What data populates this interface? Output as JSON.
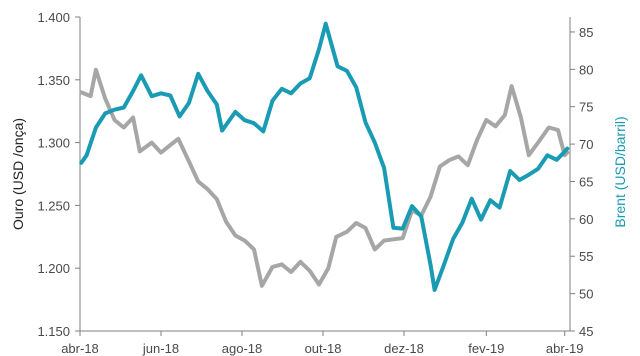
{
  "chart_data": {
    "type": "line",
    "x_tick_labels": [
      "abr-18",
      "jun-18",
      "ago-18",
      "out-18",
      "dez-18",
      "fev-19",
      "abr-19"
    ],
    "y_left": {
      "label": "Ouro (USD /onça)",
      "range": [
        1150,
        1400
      ],
      "ticks": [
        1150,
        1200,
        1250,
        1300,
        1350,
        1400
      ],
      "tick_labels": [
        "1.150",
        "1.200",
        "1.250",
        "1.300",
        "1.350",
        "1.400"
      ]
    },
    "y_right": {
      "label": "Brent (USD/barril)",
      "range": [
        45,
        87
      ],
      "ticks": [
        45,
        50,
        55,
        60,
        65,
        70,
        75,
        80,
        85
      ],
      "tick_labels": [
        "45",
        "50",
        "55",
        "60",
        "65",
        "70",
        "75",
        "80",
        "85"
      ]
    },
    "series": [
      {
        "axis": "left",
        "color": "#a6a6a6",
        "points": [
          [
            "2018-04-02",
            1340
          ],
          [
            "2018-04-09",
            1337
          ],
          [
            "2018-04-13",
            1358
          ],
          [
            "2018-04-20",
            1335
          ],
          [
            "2018-04-27",
            1318
          ],
          [
            "2018-05-04",
            1312
          ],
          [
            "2018-05-11",
            1320
          ],
          [
            "2018-05-16",
            1293
          ],
          [
            "2018-05-25",
            1300
          ],
          [
            "2018-06-01",
            1292
          ],
          [
            "2018-06-08",
            1298
          ],
          [
            "2018-06-14",
            1303
          ],
          [
            "2018-06-22",
            1285
          ],
          [
            "2018-06-29",
            1269
          ],
          [
            "2018-07-06",
            1263
          ],
          [
            "2018-07-13",
            1255
          ],
          [
            "2018-07-20",
            1237
          ],
          [
            "2018-07-27",
            1226
          ],
          [
            "2018-08-03",
            1222
          ],
          [
            "2018-08-10",
            1215
          ],
          [
            "2018-08-16",
            1186
          ],
          [
            "2018-08-24",
            1201
          ],
          [
            "2018-08-31",
            1203
          ],
          [
            "2018-09-07",
            1197
          ],
          [
            "2018-09-14",
            1205
          ],
          [
            "2018-09-21",
            1198
          ],
          [
            "2018-09-28",
            1187
          ],
          [
            "2018-10-05",
            1200
          ],
          [
            "2018-10-11",
            1225
          ],
          [
            "2018-10-19",
            1229
          ],
          [
            "2018-10-26",
            1236
          ],
          [
            "2018-11-02",
            1232
          ],
          [
            "2018-11-09",
            1215
          ],
          [
            "2018-11-16",
            1222
          ],
          [
            "2018-11-23",
            1223
          ],
          [
            "2018-11-30",
            1224
          ],
          [
            "2018-12-07",
            1246
          ],
          [
            "2018-12-14",
            1242
          ],
          [
            "2018-12-21",
            1257
          ],
          [
            "2018-12-28",
            1281
          ],
          [
            "2019-01-04",
            1286
          ],
          [
            "2019-01-11",
            1289
          ],
          [
            "2019-01-18",
            1282
          ],
          [
            "2019-01-25",
            1302
          ],
          [
            "2019-02-01",
            1318
          ],
          [
            "2019-02-08",
            1313
          ],
          [
            "2019-02-15",
            1322
          ],
          [
            "2019-02-20",
            1345
          ],
          [
            "2019-02-27",
            1320
          ],
          [
            "2019-03-05",
            1290
          ],
          [
            "2019-03-12",
            1300
          ],
          [
            "2019-03-20",
            1312
          ],
          [
            "2019-03-27",
            1310
          ],
          [
            "2019-04-01",
            1290
          ],
          [
            "2019-04-03",
            1292
          ]
        ]
      },
      {
        "axis": "right",
        "color": "#1a9bb4",
        "points": [
          [
            "2018-04-02",
            67.5
          ],
          [
            "2018-04-06",
            68.5
          ],
          [
            "2018-04-13",
            72.2
          ],
          [
            "2018-04-20",
            74.1
          ],
          [
            "2018-04-27",
            74.6
          ],
          [
            "2018-05-04",
            74.9
          ],
          [
            "2018-05-11",
            77.1
          ],
          [
            "2018-05-17",
            79.2
          ],
          [
            "2018-05-25",
            76.4
          ],
          [
            "2018-06-01",
            76.8
          ],
          [
            "2018-06-08",
            76.5
          ],
          [
            "2018-06-15",
            73.7
          ],
          [
            "2018-06-22",
            75.5
          ],
          [
            "2018-06-29",
            79.4
          ],
          [
            "2018-07-06",
            77.1
          ],
          [
            "2018-07-13",
            75.3
          ],
          [
            "2018-07-17",
            71.8
          ],
          [
            "2018-07-27",
            74.3
          ],
          [
            "2018-08-03",
            73.2
          ],
          [
            "2018-08-10",
            72.8
          ],
          [
            "2018-08-17",
            71.7
          ],
          [
            "2018-08-24",
            75.8
          ],
          [
            "2018-08-31",
            77.4
          ],
          [
            "2018-09-07",
            76.8
          ],
          [
            "2018-09-14",
            78.1
          ],
          [
            "2018-09-21",
            78.8
          ],
          [
            "2018-09-28",
            82.7
          ],
          [
            "2018-10-03",
            86.1
          ],
          [
            "2018-10-12",
            80.4
          ],
          [
            "2018-10-19",
            79.8
          ],
          [
            "2018-10-26",
            77.6
          ],
          [
            "2018-11-02",
            72.9
          ],
          [
            "2018-11-09",
            70.2
          ],
          [
            "2018-11-16",
            66.8
          ],
          [
            "2018-11-23",
            58.8
          ],
          [
            "2018-11-30",
            58.7
          ],
          [
            "2018-12-07",
            61.7
          ],
          [
            "2018-12-14",
            60.3
          ],
          [
            "2018-12-21",
            53.8
          ],
          [
            "2018-12-24",
            50.5
          ],
          [
            "2018-12-31",
            53.8
          ],
          [
            "2019-01-07",
            57.3
          ],
          [
            "2019-01-14",
            59.5
          ],
          [
            "2019-01-21",
            62.7
          ],
          [
            "2019-01-28",
            59.9
          ],
          [
            "2019-02-04",
            62.5
          ],
          [
            "2019-02-11",
            61.5
          ],
          [
            "2019-02-19",
            66.4
          ],
          [
            "2019-02-26",
            65.2
          ],
          [
            "2019-03-05",
            65.9
          ],
          [
            "2019-03-12",
            66.7
          ],
          [
            "2019-03-19",
            68.5
          ],
          [
            "2019-03-26",
            67.9
          ],
          [
            "2019-04-01",
            69.0
          ],
          [
            "2019-04-03",
            69.4
          ]
        ]
      }
    ],
    "grid": false,
    "legend": "none"
  }
}
